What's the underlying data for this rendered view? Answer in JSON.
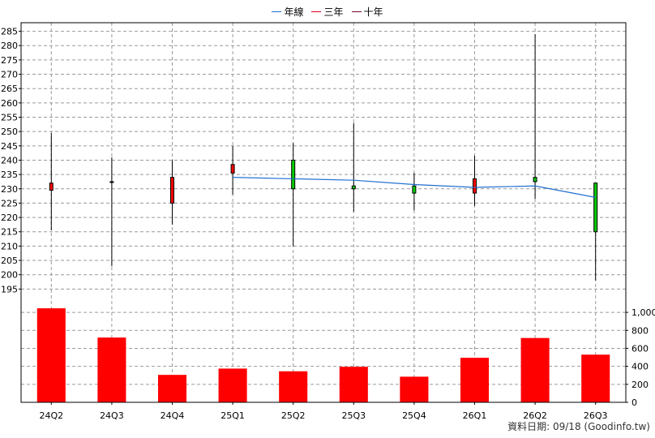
{
  "chart_data": {
    "type": "candlestick+bar",
    "legend": [
      {
        "label": "年線",
        "color": "#1f6fd1"
      },
      {
        "label": "三年",
        "color": "#e0001b"
      },
      {
        "label": "十年",
        "color": "#7a0030"
      }
    ],
    "categories": [
      "24Q2",
      "24Q3",
      "24Q4",
      "25Q1",
      "25Q2",
      "25Q3",
      "25Q4",
      "26Q1",
      "26Q2",
      "26Q3"
    ],
    "price": {
      "ylim": [
        190,
        288
      ],
      "ticks": [
        195,
        200,
        205,
        210,
        215,
        220,
        225,
        230,
        235,
        240,
        245,
        250,
        255,
        260,
        265,
        270,
        275,
        280,
        285
      ],
      "candles": [
        {
          "open": 229.5,
          "close": 232.0,
          "high": 249.5,
          "low": 215.5,
          "color": "#ff0000"
        },
        {
          "open": 232.5,
          "close": 232.5,
          "high": 241.0,
          "low": 203.0,
          "color": "#ff0000"
        },
        {
          "open": 225.0,
          "close": 234.0,
          "high": 240.0,
          "low": 217.5,
          "color": "#ff0000"
        },
        {
          "open": 235.5,
          "close": 238.5,
          "high": 245.0,
          "low": 228.0,
          "color": "#ff0000"
        },
        {
          "open": 240.0,
          "close": 230.0,
          "high": 246.0,
          "low": 210.0,
          "color": "#00cc00"
        },
        {
          "open": 231.0,
          "close": 230.0,
          "high": 253.0,
          "low": 222.0,
          "color": "#00cc00"
        },
        {
          "open": 231.0,
          "close": 228.5,
          "high": 235.5,
          "low": 222.5,
          "color": "#00cc00"
        },
        {
          "open": 228.5,
          "close": 233.5,
          "high": 241.5,
          "low": 224.0,
          "color": "#ff0000"
        },
        {
          "open": 234.0,
          "close": 232.5,
          "high": 284.0,
          "low": 226.5,
          "color": "#00cc00"
        },
        {
          "open": 232.0,
          "close": 215.0,
          "high": 232.0,
          "low": 198.0,
          "color": "#00cc00"
        }
      ],
      "annual_line": {
        "name": "年線",
        "start_index": 3,
        "values": [
          234.0,
          233.5,
          233.0,
          231.5,
          230.5,
          231.0,
          227.0
        ]
      }
    },
    "volume": {
      "ylim": [
        0,
        1100
      ],
      "ticks": [
        0,
        200,
        400,
        600,
        800,
        1000
      ],
      "tick_labels": [
        "0",
        "200",
        "400",
        "600",
        "800",
        "1,000"
      ],
      "values": [
        1045,
        720,
        305,
        375,
        345,
        395,
        285,
        495,
        715,
        530
      ],
      "color": "#ff0000"
    }
  },
  "footer": {
    "text": "資料日期: 09/18  (Goodinfo.tw)"
  }
}
